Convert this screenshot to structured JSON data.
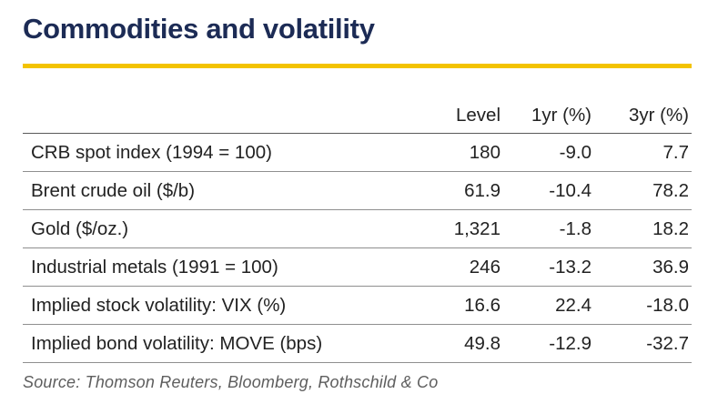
{
  "title": "Commodities and volatility",
  "colors": {
    "title": "#1c2b55",
    "accent_rule": "#f3c300",
    "source_text": "#5e5e5e"
  },
  "table": {
    "headers": [
      "",
      "Level",
      "1yr (%)",
      "3yr (%)"
    ],
    "rows": [
      {
        "label": "CRB spot index (1994 = 100)",
        "level": "180",
        "yr1": "-9.0",
        "yr3": "7.7"
      },
      {
        "label": "Brent crude oil ($/b)",
        "level": "61.9",
        "yr1": "-10.4",
        "yr3": "78.2"
      },
      {
        "label": "Gold ($/oz.)",
        "level": "1,321",
        "yr1": "-1.8",
        "yr3": "18.2"
      },
      {
        "label": "Industrial metals (1991 = 100)",
        "level": "246",
        "yr1": "-13.2",
        "yr3": "36.9"
      },
      {
        "label": "Implied stock volatility: VIX (%)",
        "level": "16.6",
        "yr1": "22.4",
        "yr3": "-18.0"
      },
      {
        "label": "Implied bond volatility: MOVE (bps)",
        "level": "49.8",
        "yr1": "-12.9",
        "yr3": "-32.7"
      }
    ]
  },
  "source": "Source: Thomson Reuters, Bloomberg, Rothschild & Co"
}
